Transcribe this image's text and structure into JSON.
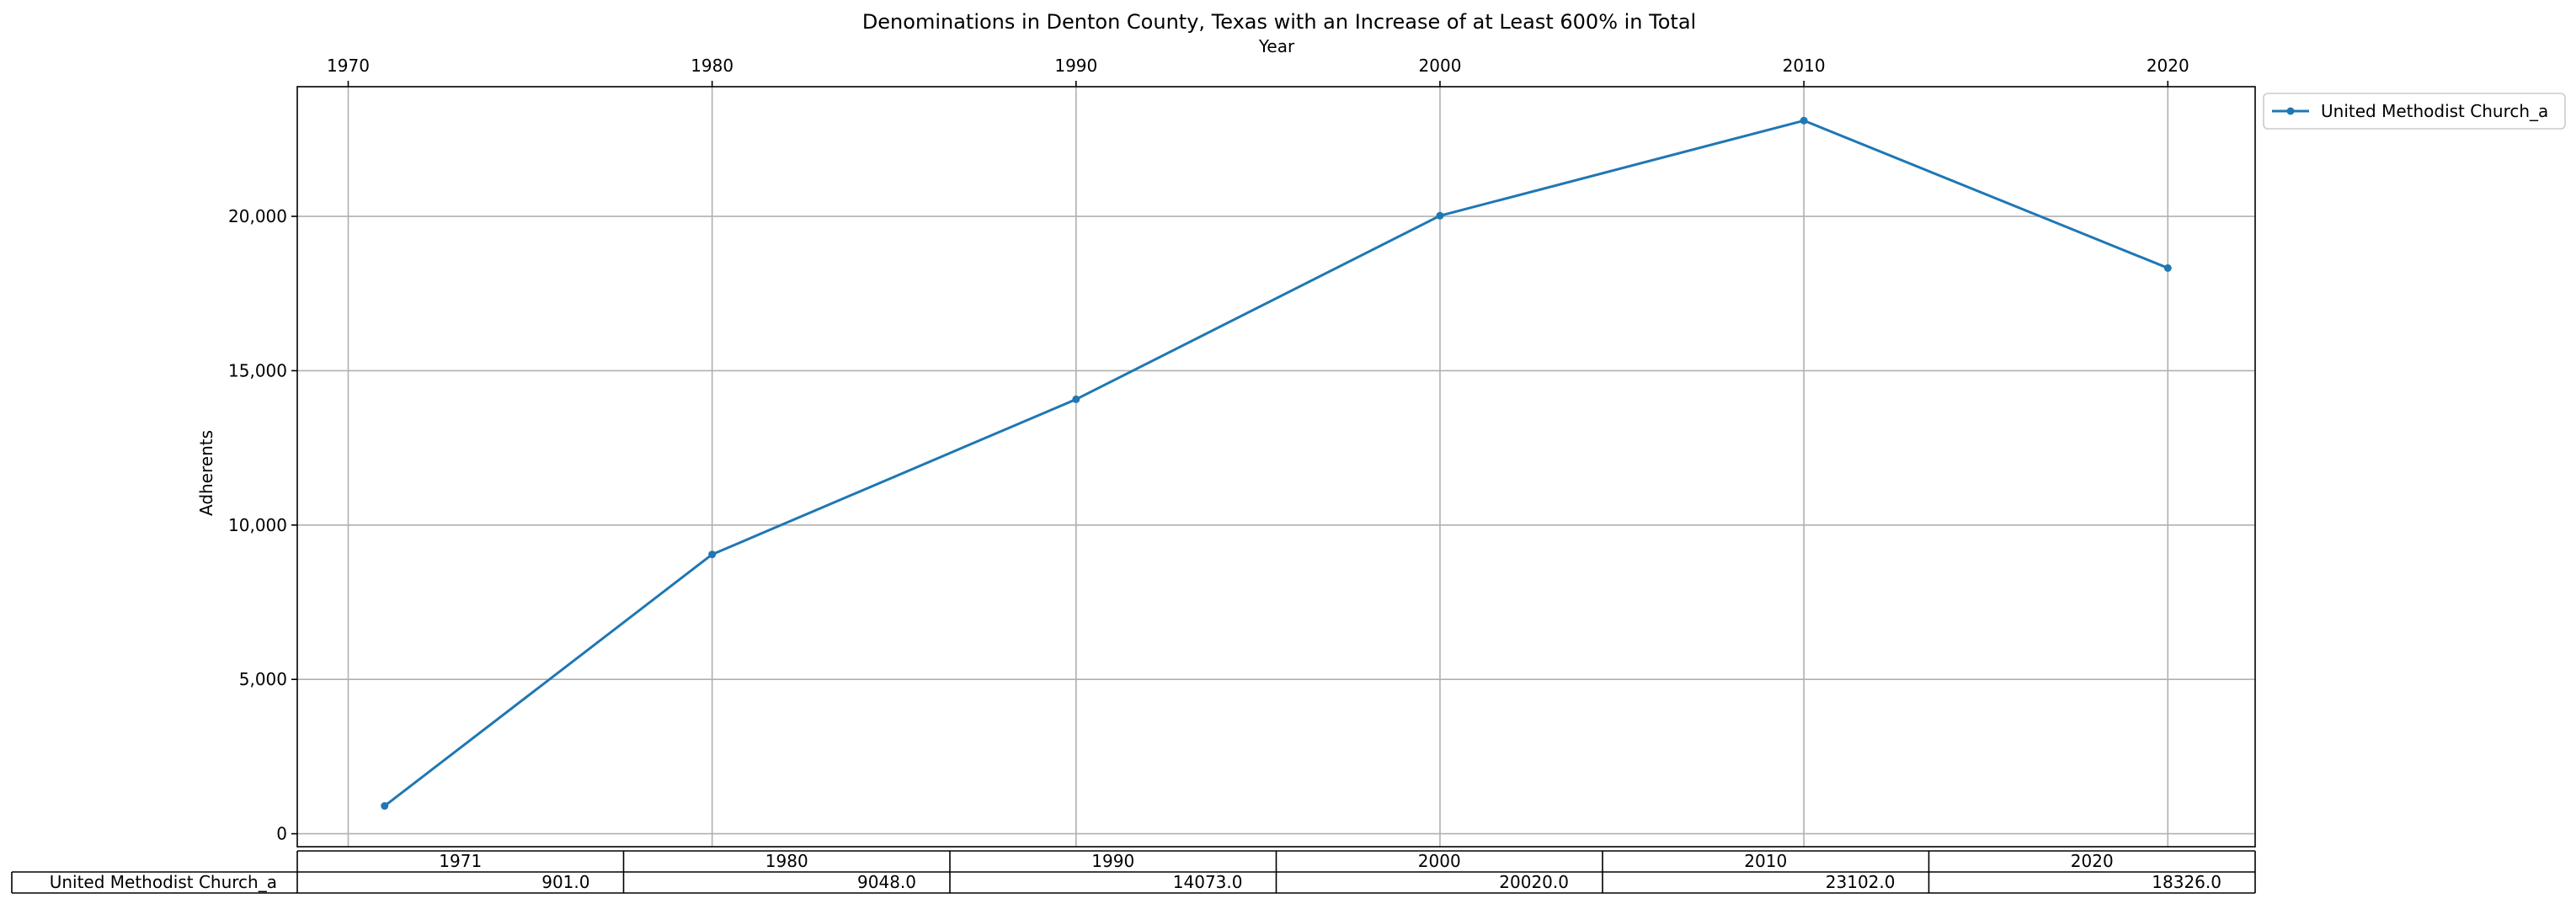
{
  "chart_data": {
    "type": "line",
    "title": "Denominations in Denton County, Texas with an Increase of at Least 600% in Total",
    "xlabel": "Year",
    "ylabel": "Adherents",
    "x_ticks": [
      "1970",
      "1980",
      "1990",
      "2000",
      "2010",
      "2020"
    ],
    "y_ticks": [
      "0",
      "5,000",
      "10,000",
      "15,000",
      "20,000"
    ],
    "xlim": [
      1968.6,
      2022.4
    ],
    "ylim": [
      -420,
      24200
    ],
    "grid": true,
    "legend_position": "outside-top-right",
    "x": [
      1971,
      1980,
      1990,
      2000,
      2010,
      2020
    ],
    "series": [
      {
        "name": "United Methodist Church_a",
        "color": "#1f77b4",
        "marker": "dot",
        "values": [
          901.0,
          9048.0,
          14073.0,
          20020.0,
          23102.0,
          18326.0
        ]
      }
    ],
    "table": {
      "columns": [
        "1971",
        "1980",
        "1990",
        "2000",
        "2010",
        "2020"
      ],
      "row_label": "United Methodist Church_a",
      "cells": [
        "901.0",
        "9048.0",
        "14073.0",
        "20020.0",
        "23102.0",
        "18326.0"
      ]
    }
  }
}
